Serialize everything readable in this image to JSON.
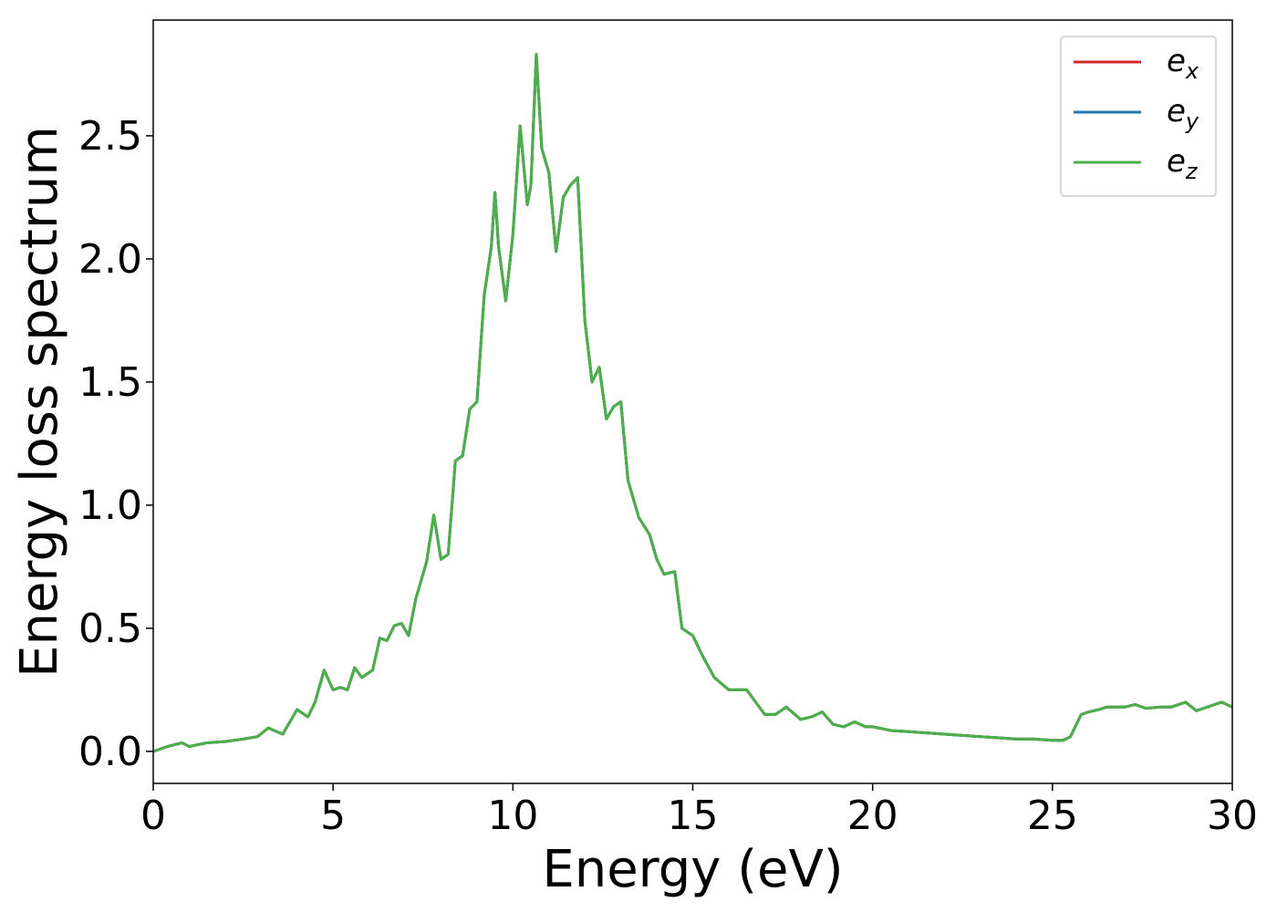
{
  "chart_data": {
    "type": "line",
    "title": "",
    "xlabel": "Energy (eV)",
    "ylabel": "Energy loss spectrum",
    "xlim": [
      0,
      30
    ],
    "ylim": [
      -0.13,
      2.97
    ],
    "xticks": [
      0,
      5,
      10,
      15,
      20,
      25,
      30
    ],
    "xtick_labels": [
      "0",
      "5",
      "10",
      "15",
      "20",
      "25",
      "30"
    ],
    "yticks": [
      0.0,
      0.5,
      1.0,
      1.5,
      2.0,
      2.5
    ],
    "ytick_labels": [
      "0.0",
      "0.5",
      "1.0",
      "1.5",
      "2.0",
      "2.5"
    ],
    "grid": false,
    "legend_position": "top-right",
    "series": [
      {
        "name": "e_x",
        "label_main": "e",
        "label_sub": "x",
        "color": "#d62728"
      },
      {
        "name": "e_y",
        "label_main": "e",
        "label_sub": "y",
        "color": "#1f77b4"
      },
      {
        "name": "e_z",
        "label_main": "e",
        "label_sub": "z",
        "color": "#4daf4a"
      }
    ],
    "x": [
      0,
      0.4,
      0.8,
      1.0,
      1.5,
      2.0,
      2.5,
      2.9,
      3.2,
      3.6,
      4.0,
      4.3,
      4.5,
      4.75,
      5.0,
      5.2,
      5.4,
      5.6,
      5.8,
      6.1,
      6.3,
      6.5,
      6.7,
      6.9,
      7.1,
      7.3,
      7.6,
      7.8,
      8.0,
      8.2,
      8.4,
      8.6,
      8.8,
      9.0,
      9.2,
      9.4,
      9.5,
      9.6,
      9.8,
      10.0,
      10.2,
      10.4,
      10.5,
      10.65,
      10.8,
      11.0,
      11.2,
      11.4,
      11.6,
      11.8,
      12.0,
      12.2,
      12.4,
      12.6,
      12.8,
      13.0,
      13.2,
      13.5,
      13.8,
      14.0,
      14.2,
      14.5,
      14.7,
      15.0,
      15.3,
      15.6,
      16.0,
      16.5,
      17.0,
      17.3,
      17.6,
      18.0,
      18.3,
      18.6,
      18.9,
      19.2,
      19.5,
      19.8,
      20.0,
      20.5,
      21.0,
      21.5,
      22.0,
      22.5,
      23.0,
      23.5,
      24.0,
      24.5,
      25.0,
      25.3,
      25.5,
      25.8,
      26.0,
      26.3,
      26.5,
      27.0,
      27.3,
      27.6,
      28.0,
      28.3,
      28.7,
      29.0,
      29.3,
      29.7,
      30.0
    ],
    "y": [
      0.0,
      0.02,
      0.035,
      0.02,
      0.035,
      0.04,
      0.05,
      0.06,
      0.095,
      0.07,
      0.17,
      0.14,
      0.2,
      0.33,
      0.25,
      0.26,
      0.25,
      0.34,
      0.3,
      0.33,
      0.46,
      0.45,
      0.51,
      0.52,
      0.47,
      0.62,
      0.77,
      0.96,
      0.78,
      0.8,
      1.18,
      1.2,
      1.39,
      1.42,
      1.85,
      2.05,
      2.27,
      2.05,
      1.83,
      2.1,
      2.54,
      2.22,
      2.3,
      2.83,
      2.45,
      2.35,
      2.03,
      2.25,
      2.3,
      2.33,
      1.75,
      1.5,
      1.56,
      1.35,
      1.4,
      1.42,
      1.1,
      0.95,
      0.88,
      0.78,
      0.72,
      0.73,
      0.5,
      0.47,
      0.38,
      0.3,
      0.25,
      0.25,
      0.15,
      0.15,
      0.18,
      0.13,
      0.14,
      0.16,
      0.11,
      0.1,
      0.12,
      0.1,
      0.1,
      0.085,
      0.08,
      0.075,
      0.07,
      0.065,
      0.06,
      0.055,
      0.05,
      0.05,
      0.045,
      0.045,
      0.06,
      0.15,
      0.16,
      0.17,
      0.18,
      0.18,
      0.19,
      0.175,
      0.18,
      0.18,
      0.2,
      0.165,
      0.18,
      0.2,
      0.18
    ]
  }
}
